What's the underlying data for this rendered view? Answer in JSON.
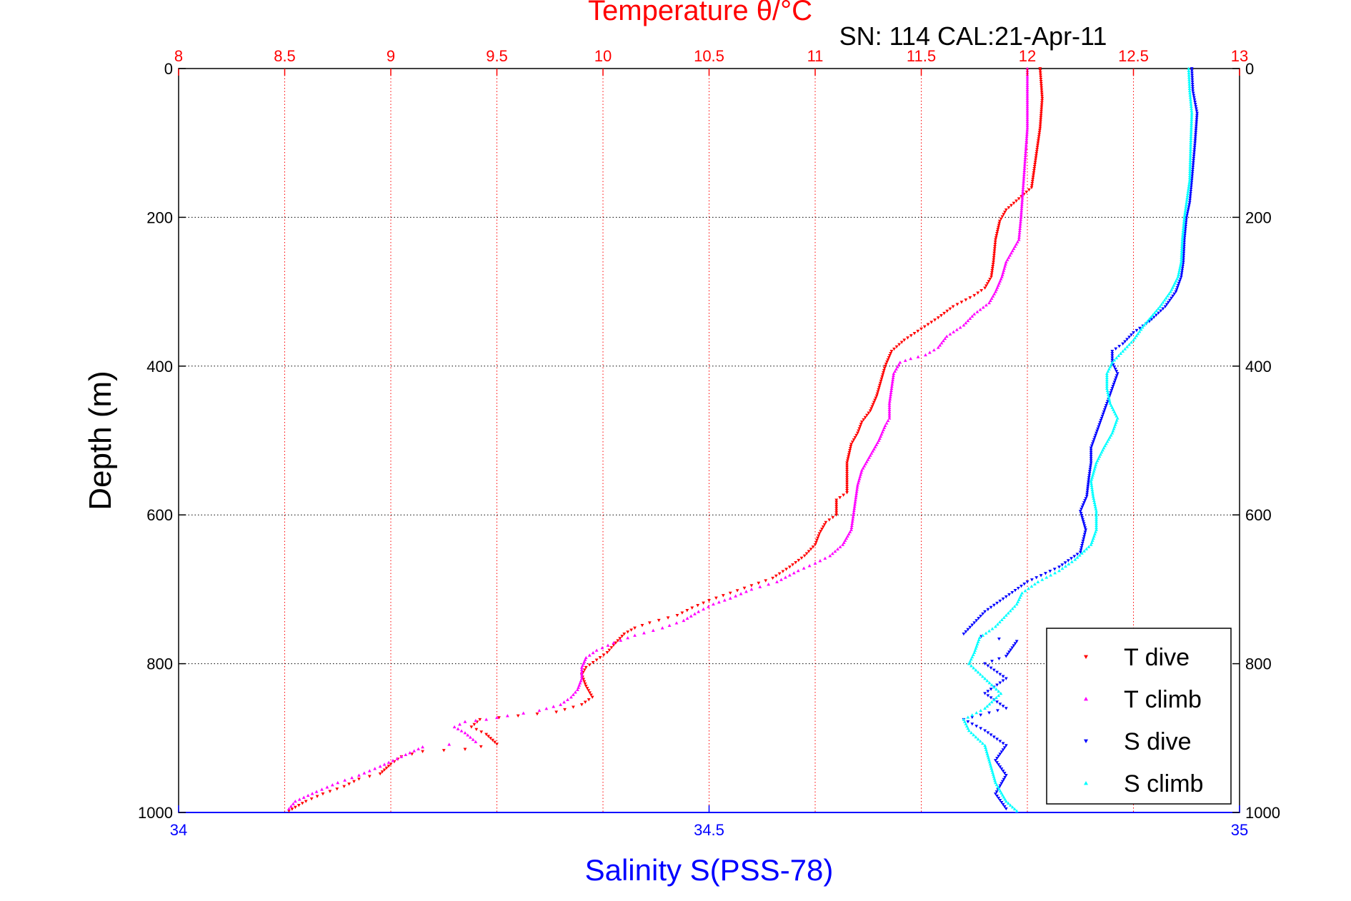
{
  "chart_data": {
    "type": "scatter",
    "title": "Temperature θ/°C",
    "subtitle": "SN: 114  CAL:21-Apr-11",
    "ylabel": "Depth (m)",
    "x_top": {
      "label": "Temperature θ/°C",
      "range": [
        8,
        13
      ],
      "ticks": [
        "8",
        "8.5",
        "9",
        "9.5",
        "10",
        "10.5",
        "11",
        "11.5",
        "12",
        "12.5",
        "13"
      ],
      "color": "#ff0000",
      "grid": true
    },
    "x_bottom": {
      "label": "Salinity S(PSS-78)",
      "range": [
        34,
        35
      ],
      "ticks": [
        "34",
        "34.5",
        "35"
      ],
      "color": "#0000ff"
    },
    "y": {
      "range": [
        0,
        1000
      ],
      "reversed": true,
      "ticks": [
        "0",
        "200",
        "400",
        "600",
        "800",
        "1000"
      ],
      "grid": true
    },
    "legend_position": "bottom-right",
    "series": [
      {
        "name": "T dive",
        "axis": "top",
        "color": "#ff0000",
        "marker": "triangle-down",
        "points": [
          [
            12.06,
            0
          ],
          [
            12.07,
            40
          ],
          [
            12.06,
            80
          ],
          [
            12.04,
            120
          ],
          [
            12.02,
            160
          ],
          [
            11.96,
            175
          ],
          [
            11.9,
            190
          ],
          [
            11.87,
            205
          ],
          [
            11.85,
            230
          ],
          [
            11.84,
            260
          ],
          [
            11.83,
            280
          ],
          [
            11.8,
            295
          ],
          [
            11.75,
            305
          ],
          [
            11.65,
            320
          ],
          [
            11.58,
            335
          ],
          [
            11.5,
            350
          ],
          [
            11.42,
            365
          ],
          [
            11.36,
            380
          ],
          [
            11.33,
            400
          ],
          [
            11.31,
            420
          ],
          [
            11.29,
            440
          ],
          [
            11.26,
            460
          ],
          [
            11.22,
            475
          ],
          [
            11.2,
            490
          ],
          [
            11.17,
            505
          ],
          [
            11.15,
            530
          ],
          [
            11.15,
            550
          ],
          [
            11.15,
            570
          ],
          [
            11.1,
            580
          ],
          [
            11.1,
            600
          ],
          [
            11.05,
            610
          ],
          [
            11.02,
            625
          ],
          [
            11.0,
            640
          ],
          [
            10.95,
            655
          ],
          [
            10.88,
            670
          ],
          [
            10.8,
            685
          ],
          [
            10.7,
            695
          ],
          [
            10.6,
            705
          ],
          [
            10.5,
            715
          ],
          [
            10.42,
            725
          ],
          [
            10.35,
            735
          ],
          [
            10.22,
            745
          ],
          [
            10.15,
            752
          ],
          [
            10.1,
            760
          ],
          [
            10.05,
            775
          ],
          [
            10.02,
            785
          ],
          [
            9.97,
            795
          ],
          [
            9.92,
            805
          ],
          [
            9.9,
            815
          ],
          [
            9.92,
            830
          ],
          [
            9.95,
            845
          ],
          [
            9.9,
            855
          ],
          [
            9.78,
            865
          ],
          [
            9.6,
            870
          ],
          [
            9.42,
            875
          ],
          [
            9.38,
            885
          ],
          [
            9.45,
            895
          ],
          [
            9.5,
            908
          ],
          [
            9.35,
            915
          ],
          [
            9.15,
            918
          ],
          [
            9.05,
            925
          ],
          [
            9.0,
            935
          ],
          [
            8.95,
            948
          ],
          [
            8.85,
            955
          ],
          [
            8.78,
            965
          ],
          [
            8.68,
            975
          ],
          [
            8.6,
            985
          ],
          [
            8.55,
            993
          ],
          [
            8.52,
            998
          ]
        ]
      },
      {
        "name": "T climb",
        "axis": "top",
        "color": "#ff00ff",
        "marker": "triangle-up",
        "points": [
          [
            12.0,
            0
          ],
          [
            12.0,
            40
          ],
          [
            12.0,
            80
          ],
          [
            11.99,
            120
          ],
          [
            11.98,
            160
          ],
          [
            11.97,
            200
          ],
          [
            11.96,
            230
          ],
          [
            11.93,
            245
          ],
          [
            11.9,
            260
          ],
          [
            11.88,
            280
          ],
          [
            11.85,
            300
          ],
          [
            11.82,
            315
          ],
          [
            11.75,
            330
          ],
          [
            11.7,
            345
          ],
          [
            11.62,
            360
          ],
          [
            11.58,
            375
          ],
          [
            11.52,
            385
          ],
          [
            11.45,
            390
          ],
          [
            11.4,
            395
          ],
          [
            11.37,
            410
          ],
          [
            11.36,
            430
          ],
          [
            11.35,
            450
          ],
          [
            11.35,
            470
          ],
          [
            11.33,
            480
          ],
          [
            11.3,
            500
          ],
          [
            11.26,
            520
          ],
          [
            11.22,
            540
          ],
          [
            11.2,
            560
          ],
          [
            11.19,
            580
          ],
          [
            11.18,
            600
          ],
          [
            11.17,
            620
          ],
          [
            11.13,
            640
          ],
          [
            11.07,
            655
          ],
          [
            11.0,
            665
          ],
          [
            10.92,
            675
          ],
          [
            10.82,
            690
          ],
          [
            10.7,
            700
          ],
          [
            10.6,
            712
          ],
          [
            10.52,
            720
          ],
          [
            10.45,
            730
          ],
          [
            10.38,
            742
          ],
          [
            10.28,
            752
          ],
          [
            10.15,
            762
          ],
          [
            10.05,
            772
          ],
          [
            9.97,
            782
          ],
          [
            9.92,
            792
          ],
          [
            9.9,
            805
          ],
          [
            9.9,
            820
          ],
          [
            9.88,
            835
          ],
          [
            9.85,
            845
          ],
          [
            9.8,
            855
          ],
          [
            9.7,
            863
          ],
          [
            9.55,
            870
          ],
          [
            9.45,
            875
          ],
          [
            9.35,
            878
          ],
          [
            9.3,
            885
          ],
          [
            9.35,
            893
          ],
          [
            9.4,
            905
          ],
          [
            9.15,
            912
          ],
          [
            9.05,
            925
          ],
          [
            8.95,
            938
          ],
          [
            8.85,
            950
          ],
          [
            8.75,
            960
          ],
          [
            8.65,
            972
          ],
          [
            8.55,
            985
          ],
          [
            8.52,
            995
          ]
        ]
      },
      {
        "name": "S dive",
        "axis": "bottom",
        "color": "#0000ff",
        "marker": "triangle-down",
        "points": [
          [
            34.955,
            0
          ],
          [
            34.956,
            30
          ],
          [
            34.96,
            60
          ],
          [
            34.958,
            100
          ],
          [
            34.955,
            150
          ],
          [
            34.953,
            180
          ],
          [
            34.95,
            200
          ],
          [
            34.948,
            230
          ],
          [
            34.947,
            260
          ],
          [
            34.945,
            280
          ],
          [
            34.94,
            300
          ],
          [
            34.93,
            320
          ],
          [
            34.915,
            340
          ],
          [
            34.9,
            355
          ],
          [
            34.89,
            370
          ],
          [
            34.88,
            380
          ],
          [
            34.88,
            395
          ],
          [
            34.885,
            410
          ],
          [
            34.88,
            430
          ],
          [
            34.875,
            450
          ],
          [
            34.87,
            470
          ],
          [
            34.865,
            490
          ],
          [
            34.86,
            510
          ],
          [
            34.86,
            530
          ],
          [
            34.858,
            550
          ],
          [
            34.856,
            575
          ],
          [
            34.85,
            595
          ],
          [
            34.855,
            620
          ],
          [
            34.85,
            650
          ],
          [
            34.83,
            670
          ],
          [
            34.8,
            690
          ],
          [
            34.78,
            710
          ],
          [
            34.76,
            730
          ],
          [
            34.75,
            745
          ],
          [
            34.74,
            760
          ],
          [
            34.79,
            770
          ],
          [
            34.78,
            790
          ],
          [
            34.76,
            800
          ],
          [
            34.78,
            820
          ],
          [
            34.76,
            840
          ],
          [
            34.78,
            860
          ],
          [
            34.74,
            875
          ],
          [
            34.76,
            890
          ],
          [
            34.78,
            910
          ],
          [
            34.77,
            930
          ],
          [
            34.78,
            950
          ],
          [
            34.77,
            975
          ],
          [
            34.78,
            995
          ]
        ]
      },
      {
        "name": "S climb",
        "axis": "bottom",
        "color": "#00ffff",
        "marker": "triangle-up",
        "points": [
          [
            34.952,
            0
          ],
          [
            34.953,
            30
          ],
          [
            34.955,
            60
          ],
          [
            34.954,
            100
          ],
          [
            34.953,
            150
          ],
          [
            34.95,
            180
          ],
          [
            34.948,
            200
          ],
          [
            34.946,
            230
          ],
          [
            34.945,
            260
          ],
          [
            34.942,
            280
          ],
          [
            34.935,
            300
          ],
          [
            34.925,
            320
          ],
          [
            34.91,
            345
          ],
          [
            34.9,
            365
          ],
          [
            34.89,
            380
          ],
          [
            34.88,
            395
          ],
          [
            34.875,
            410
          ],
          [
            34.875,
            430
          ],
          [
            34.878,
            450
          ],
          [
            34.885,
            470
          ],
          [
            34.88,
            490
          ],
          [
            34.872,
            510
          ],
          [
            34.865,
            530
          ],
          [
            34.86,
            555
          ],
          [
            34.862,
            575
          ],
          [
            34.865,
            595
          ],
          [
            34.865,
            620
          ],
          [
            34.86,
            640
          ],
          [
            34.845,
            660
          ],
          [
            34.83,
            675
          ],
          [
            34.81,
            690
          ],
          [
            34.795,
            705
          ],
          [
            34.79,
            720
          ],
          [
            34.78,
            735
          ],
          [
            34.77,
            750
          ],
          [
            34.755,
            765
          ],
          [
            34.75,
            785
          ],
          [
            34.745,
            800
          ],
          [
            34.76,
            820
          ],
          [
            34.775,
            840
          ],
          [
            34.76,
            860
          ],
          [
            34.74,
            875
          ],
          [
            34.745,
            890
          ],
          [
            34.76,
            910
          ],
          [
            34.765,
            935
          ],
          [
            34.77,
            960
          ],
          [
            34.78,
            985
          ],
          [
            34.79,
            998
          ]
        ]
      }
    ]
  }
}
